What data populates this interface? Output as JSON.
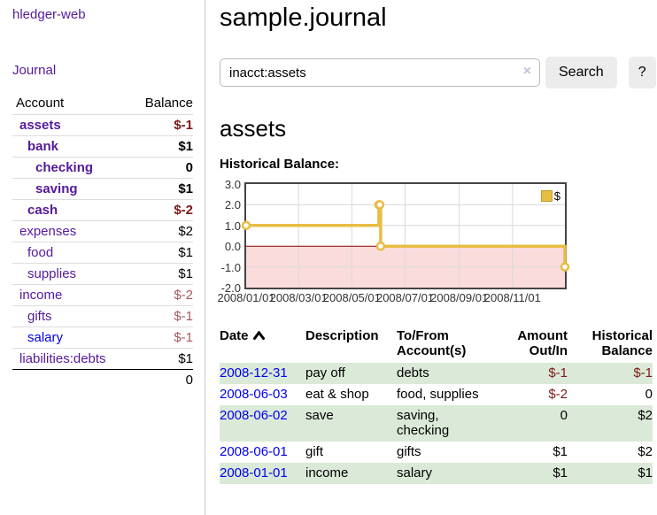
{
  "colors": {
    "link_purple": "#551a9b",
    "link_blue": "#0000ee",
    "negative_strong": "#7f1818",
    "negative_soft": "#a9565e",
    "row_stripe_green": "#dbead8",
    "chart_line": "#e8bd44",
    "chart_negative_fill": "#fbdcdc",
    "chart_zero_line": "#8b0000",
    "chart_grid": "#dadada",
    "chart_border": "#444444"
  },
  "sidebar": {
    "app_title": "hledger-web",
    "nav_journal": "Journal",
    "accounts_table": {
      "headers": {
        "account": "Account",
        "balance": "Balance"
      },
      "rows": [
        {
          "name": "assets",
          "depth": 1,
          "bold": true,
          "balance": "$-1",
          "balance_style": "neg-strong"
        },
        {
          "name": "bank",
          "depth": 2,
          "bold": true,
          "balance": "$1",
          "balance_style": "pos-strong"
        },
        {
          "name": "checking",
          "depth": 3,
          "bold": true,
          "balance": "0",
          "balance_style": "pos-strong"
        },
        {
          "name": "saving",
          "depth": 3,
          "bold": true,
          "balance": "$1",
          "balance_style": "pos-strong"
        },
        {
          "name": "cash",
          "depth": 2,
          "bold": true,
          "balance": "$-2",
          "balance_style": "neg-strong"
        },
        {
          "name": "expenses",
          "depth": 1,
          "bold": false,
          "balance": "$2",
          "balance_style": "pos"
        },
        {
          "name": "food",
          "depth": 2,
          "bold": false,
          "balance": "$1",
          "balance_style": "pos"
        },
        {
          "name": "supplies",
          "depth": 2,
          "bold": false,
          "balance": "$1",
          "balance_style": "pos"
        },
        {
          "name": "income",
          "depth": 1,
          "bold": false,
          "balance": "$-2",
          "balance_style": "neg"
        },
        {
          "name": "gifts",
          "depth": 2,
          "bold": false,
          "balance": "$-1",
          "balance_style": "neg"
        },
        {
          "name": "salary",
          "depth": 2,
          "bold": false,
          "balance": "$-1",
          "balance_style": "neg",
          "link_color": "blue"
        },
        {
          "name": "liabilities:debts",
          "depth": 1,
          "bold": false,
          "balance": "$1",
          "balance_style": "pos"
        }
      ],
      "total": "0"
    }
  },
  "header": {
    "title": "sample.journal"
  },
  "search": {
    "value": "inacct:assets",
    "clear_icon": "×",
    "button_label": "Search",
    "help_label": "?"
  },
  "account_page": {
    "title": "assets",
    "chart_label": "Historical Balance:"
  },
  "chart_data": {
    "type": "line",
    "step": true,
    "title": "Historical Balance:",
    "legend": [
      "$"
    ],
    "legend_position": "top-right",
    "grid": true,
    "x_range": [
      "2008-01-01",
      "2008-12-31"
    ],
    "ylim": [
      -2,
      3
    ],
    "y_ticks": [
      3.0,
      2.0,
      1.0,
      0.0,
      -1.0,
      -2.0
    ],
    "y_tick_labels": [
      "3.0",
      "2.0",
      "1.0",
      "0.0",
      "-1.0",
      "-2.0"
    ],
    "x_ticks": [
      "2008-01-01",
      "2008-03-01",
      "2008-05-01",
      "2008-07-01",
      "2008-09-01",
      "2008-11-01"
    ],
    "x_tick_labels": [
      "2008/01/01",
      "2008/03/01",
      "2008/05/01",
      "2008/07/01",
      "2008/09/01",
      "2008/11/01"
    ],
    "series": [
      {
        "name": "$",
        "points": [
          {
            "date": "2008-01-01",
            "value": 1
          },
          {
            "date": "2008-06-01",
            "value": 2
          },
          {
            "date": "2008-06-02",
            "value": 2
          },
          {
            "date": "2008-06-03",
            "value": 0
          },
          {
            "date": "2008-12-31",
            "value": -1
          }
        ]
      }
    ]
  },
  "register_table": {
    "headers": {
      "date": "Date",
      "description": "Description",
      "accounts": "To/From Account(s)",
      "amount": "Amount Out/In",
      "balance": "Historical Balance"
    },
    "sort": {
      "column": "date",
      "direction": "asc"
    },
    "rows": [
      {
        "date": "2008-12-31",
        "description": "pay off",
        "accounts": "debts",
        "amount": "$-1",
        "amount_neg": true,
        "balance": "$-1",
        "balance_neg": true
      },
      {
        "date": "2008-06-03",
        "description": "eat & shop",
        "accounts": "food, supplies",
        "amount": "$-2",
        "amount_neg": true,
        "balance": "0",
        "balance_neg": false
      },
      {
        "date": "2008-06-02",
        "description": "save",
        "accounts": "saving,\nchecking",
        "amount": "0",
        "amount_neg": false,
        "balance": "$2",
        "balance_neg": false
      },
      {
        "date": "2008-06-01",
        "description": "gift",
        "accounts": "gifts",
        "amount": "$1",
        "amount_neg": false,
        "balance": "$2",
        "balance_neg": false
      },
      {
        "date": "2008-01-01",
        "description": "income",
        "accounts": "salary",
        "amount": "$1",
        "amount_neg": false,
        "balance": "$1",
        "balance_neg": false
      }
    ]
  }
}
